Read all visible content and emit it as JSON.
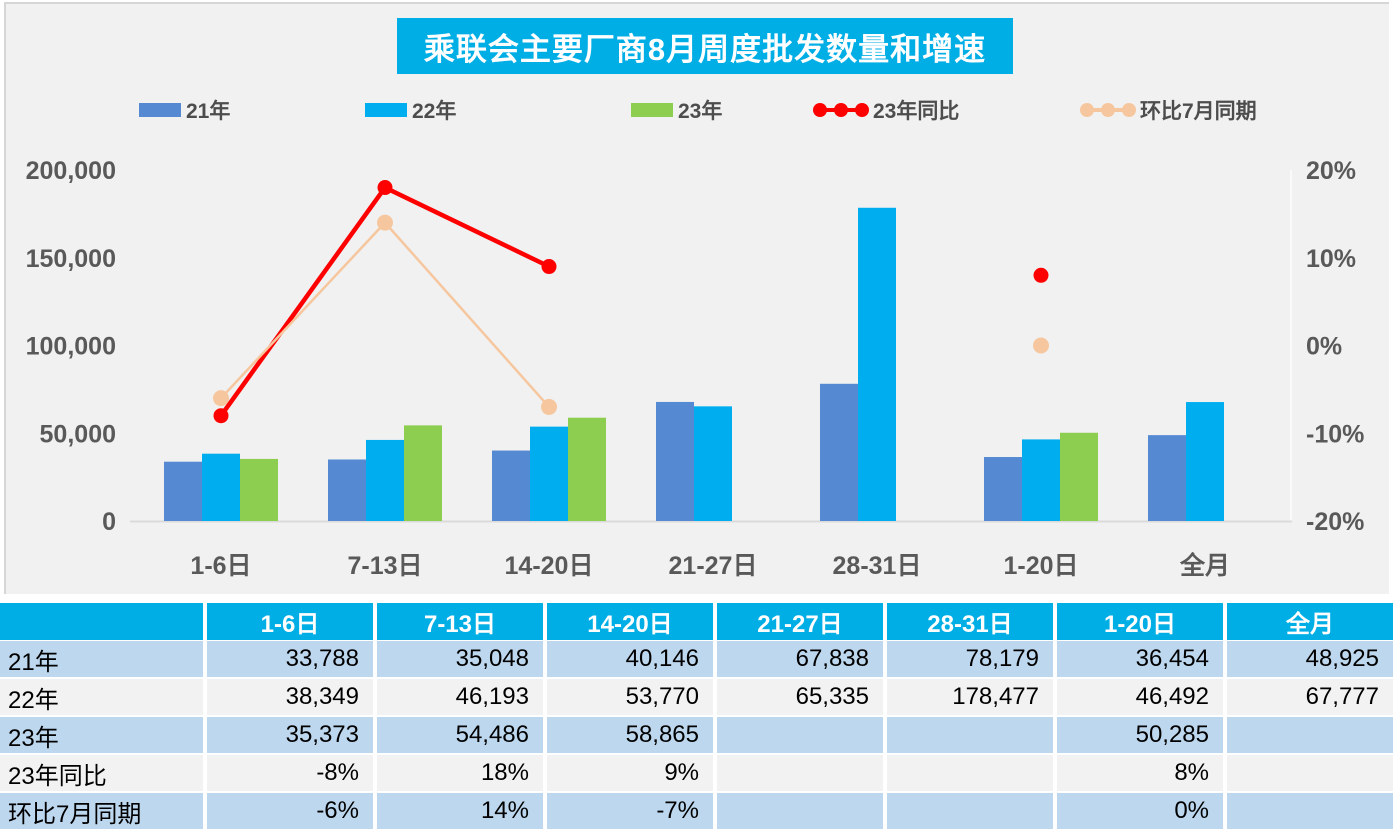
{
  "title": "乘联会主要厂商8月周度批发数量和增速",
  "colors": {
    "title_bg": "#00AEE6",
    "header_bg": "#00AEE6",
    "chart_bg": "#F1F1F1",
    "bar_21": "#5589D2",
    "bar_22": "#00AEEF",
    "bar_23": "#8DCE50",
    "line_yoy": "#FE0000",
    "line_mom": "#F6C79E",
    "row_blue": "#BDD7EE",
    "row_gray": "#F2F2F2",
    "axis_text": "#595959"
  },
  "chart_data": {
    "type": "bar",
    "subtype": "combo-bar-line-dual-axis",
    "title": "乘联会主要厂商8月周度批发数量和增速",
    "categories": [
      "1-6日",
      "7-13日",
      "14-20日",
      "21-27日",
      "28-31日",
      "1-20日",
      "全月"
    ],
    "bar_series": [
      {
        "name": "21年",
        "color": "#5589D2",
        "axis": "left",
        "values": [
          33788,
          35048,
          40146,
          67838,
          78179,
          36454,
          48925
        ]
      },
      {
        "name": "22年",
        "color": "#00AEEF",
        "axis": "left",
        "values": [
          38349,
          46193,
          53770,
          65335,
          178477,
          46492,
          67777
        ]
      },
      {
        "name": "23年",
        "color": "#8DCE50",
        "axis": "left",
        "values": [
          35373,
          54486,
          58865,
          null,
          null,
          50285,
          null
        ]
      }
    ],
    "line_series": [
      {
        "name": "23年同比",
        "color": "#FE0000",
        "axis": "right",
        "values_pct": [
          -8,
          18,
          9,
          null,
          null,
          8,
          null
        ]
      },
      {
        "name": "环比7月同期",
        "color": "#F6C79E",
        "axis": "right",
        "values_pct": [
          -6,
          14,
          -7,
          null,
          null,
          0,
          null
        ]
      }
    ],
    "left_axis": {
      "ticks": [
        "200,000",
        "150,000",
        "100,000",
        "50,000",
        "0"
      ],
      "min": 0,
      "max": 200000
    },
    "right_axis": {
      "ticks": [
        "20%",
        "10%",
        "0%",
        "-10%",
        "-20%"
      ],
      "min": -20,
      "max": 20
    },
    "legend_position": "top",
    "grid": false
  },
  "table": {
    "header": [
      "",
      "1-6日",
      "7-13日",
      "14-20日",
      "21-27日",
      "28-31日",
      "1-20日",
      "全月"
    ],
    "rows": [
      {
        "label": "21年",
        "values": [
          "33,788",
          "35,048",
          "40,146",
          "67,838",
          "78,179",
          "36,454",
          "48,925"
        ]
      },
      {
        "label": "22年",
        "values": [
          "38,349",
          "46,193",
          "53,770",
          "65,335",
          "178,477",
          "46,492",
          "67,777"
        ]
      },
      {
        "label": "23年",
        "values": [
          "35,373",
          "54,486",
          "58,865",
          "",
          "",
          "50,285",
          ""
        ]
      },
      {
        "label": "23年同比",
        "values": [
          "-8%",
          "18%",
          "9%",
          "",
          "",
          "8%",
          ""
        ]
      },
      {
        "label": "环比7月同期",
        "values": [
          "-6%",
          "14%",
          "-7%",
          "",
          "",
          "0%",
          ""
        ]
      }
    ]
  }
}
